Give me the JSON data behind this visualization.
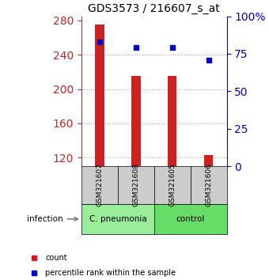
{
  "title": "GDS3573 / 216607_s_at",
  "samples": [
    "GSM321607",
    "GSM321608",
    "GSM321605",
    "GSM321606"
  ],
  "counts": [
    275,
    215,
    215,
    123
  ],
  "percentiles": [
    83,
    79,
    79,
    71
  ],
  "ylim_left": [
    110,
    285
  ],
  "ylim_right": [
    0,
    100
  ],
  "yticks_left": [
    120,
    160,
    200,
    240,
    280
  ],
  "yticks_right": [
    0,
    25,
    50,
    75,
    100
  ],
  "ytick_labels_right": [
    "0",
    "25",
    "50",
    "75",
    "100%"
  ],
  "bar_color": "#cc2222",
  "dot_color": "#0000cc",
  "bar_bottom": 110,
  "groups": [
    {
      "label": "C. pneumonia",
      "indices": [
        0,
        1
      ],
      "color": "#99ee99"
    },
    {
      "label": "control",
      "indices": [
        2,
        3
      ],
      "color": "#66dd66"
    }
  ],
  "infection_label": "infection",
  "legend_items": [
    {
      "color": "#cc2222",
      "label": "count"
    },
    {
      "color": "#0000cc",
      "label": "percentile rank within the sample"
    }
  ],
  "grid_color": "#aaaaaa",
  "sample_box_color": "#cccccc",
  "left_axis_color": "#cc2222",
  "right_axis_color": "#0000cc",
  "bg_color": "#ffffff"
}
